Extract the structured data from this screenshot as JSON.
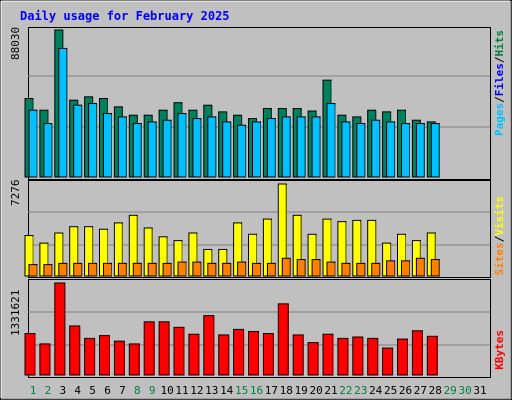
{
  "chart_data": {
    "type": "bar",
    "title": "Daily usage for February 2025",
    "days": [
      "1",
      "2",
      "3",
      "4",
      "5",
      "6",
      "7",
      "8",
      "9",
      "10",
      "11",
      "12",
      "13",
      "14",
      "15",
      "16",
      "17",
      "18",
      "19",
      "20",
      "21",
      "22",
      "23",
      "24",
      "25",
      "26",
      "27",
      "28",
      "29",
      "30",
      "31"
    ],
    "weekend_days": [
      "1",
      "2",
      "8",
      "9",
      "15",
      "16",
      "22",
      "23",
      "29",
      "30"
    ],
    "panels": [
      {
        "id": "top",
        "max_label": "88030",
        "ymax": 88030,
        "axis_labels": [
          {
            "text": "Pages",
            "color": "#00c0ff"
          },
          {
            "text": "/",
            "color": "#000000"
          },
          {
            "text": "Files",
            "color": "#0000ff"
          },
          {
            "text": "/",
            "color": "#000000"
          },
          {
            "text": "Hits",
            "color": "#008040"
          }
        ],
        "series": [
          {
            "name": "Hits",
            "color": "#00805c",
            "values": [
              47000,
              40000,
              88030,
              46000,
              48000,
              47000,
              42000,
              37000,
              37000,
              40000,
              44500,
              40000,
              43000,
              39000,
              37000,
              35000,
              41000,
              41000,
              41000,
              39500,
              58000,
              37000,
              36000,
              40000,
              39000,
              40000,
              34000,
              33000
            ]
          },
          {
            "name": "Files",
            "color": "#0000ff",
            "values": [
              null,
              null,
              null,
              null,
              null,
              null,
              null,
              null,
              null,
              null,
              null,
              null,
              null,
              null,
              null,
              null,
              null,
              null,
              null,
              null,
              null,
              null,
              null,
              null,
              null,
              null,
              null,
              null
            ]
          },
          {
            "name": "Pages",
            "color": "#00c0ff",
            "values": [
              40000,
              32000,
              77000,
              43000,
              44000,
              38000,
              36000,
              32000,
              33000,
              34000,
              38000,
              35000,
              36000,
              33000,
              31000,
              33000,
              35000,
              36000,
              36000,
              36000,
              44000,
              33000,
              32000,
              34000,
              33000,
              32000,
              32000,
              32000
            ]
          }
        ]
      },
      {
        "id": "middle",
        "max_label": "7276",
        "ymax": 7276,
        "axis_labels": [
          {
            "text": "Sites",
            "color": "#ff8000"
          },
          {
            "text": "/",
            "color": "#000000"
          },
          {
            "text": "Visits",
            "color": "#ffff00"
          }
        ],
        "series": [
          {
            "name": "Visits",
            "color": "#ffff00",
            "values": [
              3200,
              2600,
              3400,
              3900,
              3900,
              3700,
              4200,
              4800,
              3800,
              3100,
              2800,
              3400,
              2100,
              2100,
              4200,
              3300,
              4500,
              7276,
              4800,
              3300,
              4500,
              4300,
              4400,
              4400,
              2600,
              3300,
              2800,
              3400
            ]
          },
          {
            "name": "Sites",
            "color": "#ff8000",
            "values": [
              900,
              900,
              1000,
              1000,
              1000,
              1000,
              1000,
              1000,
              1000,
              1000,
              1100,
              1100,
              1000,
              1000,
              1100,
              1000,
              1000,
              1400,
              1300,
              1300,
              1100,
              1000,
              1000,
              1000,
              1200,
              1200,
              1400,
              1300
            ]
          }
        ]
      },
      {
        "id": "bottom",
        "max_label": "1331621",
        "ymax": 1331621,
        "axis_labels": [
          {
            "text": "KBytes",
            "color": "#ff0000"
          }
        ],
        "series": [
          {
            "name": "KBytes",
            "color": "#ff0000",
            "values": [
              600000,
              450000,
              1331621,
              710000,
              530000,
              570000,
              490000,
              450000,
              770000,
              770000,
              690000,
              590000,
              860000,
              580000,
              660000,
              630000,
              600000,
              1030000,
              580000,
              470000,
              590000,
              530000,
              550000,
              530000,
              390000,
              520000,
              640000,
              560000
            ]
          }
        ]
      }
    ]
  }
}
